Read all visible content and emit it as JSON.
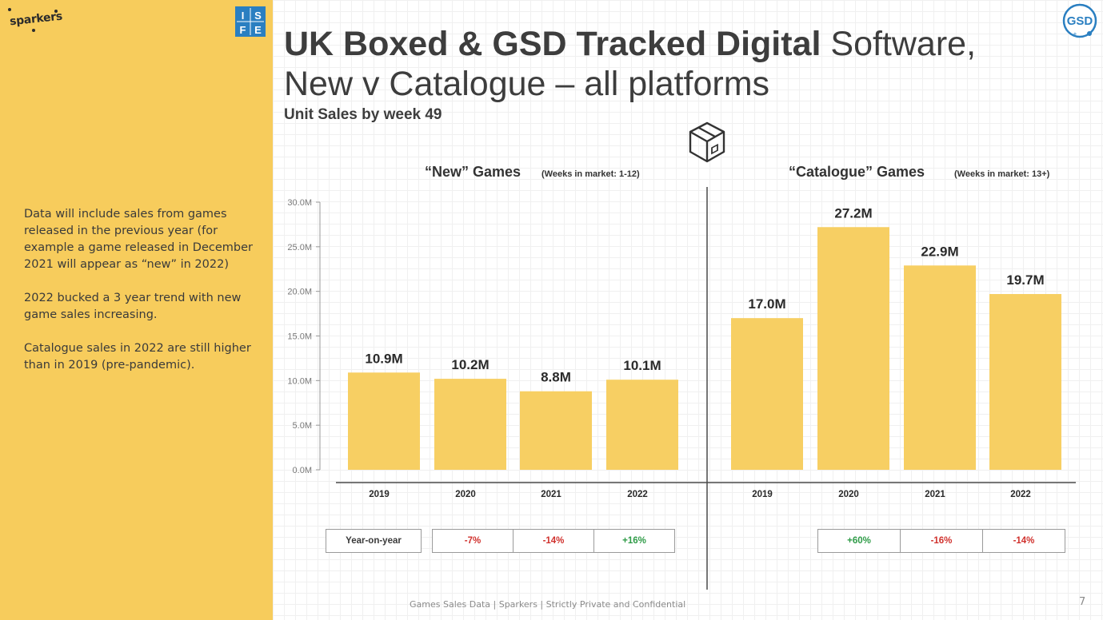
{
  "brand": {
    "sparkers": "sparkers",
    "isfe_letters": [
      "I",
      "S",
      "F",
      "E"
    ],
    "gsd": "GSD"
  },
  "title": {
    "bold": "UK Boxed & GSD Tracked Digital",
    "regular_line1": " Software,",
    "line2": "New v Catalogue – all platforms"
  },
  "subtitle": "Unit Sales by week 49",
  "sidebar": {
    "paragraphs": [
      "Data will include sales from games released in the previous year (for example a game released in December 2021 will appear as “new” in 2022)",
      "2022 bucked a 3 year trend with new game sales increasing.",
      "Catalogue sales in 2022 are still higher than in 2019 (pre-pandemic)."
    ]
  },
  "chart_data": [
    {
      "type": "bar",
      "title": "“New” Games",
      "subtitle": "(Weeks in market: 1-12)",
      "categories": [
        "2019",
        "2020",
        "2021",
        "2022"
      ],
      "values": [
        10.9,
        10.2,
        8.8,
        10.1
      ],
      "data_labels": [
        "10.9M",
        "10.2M",
        "8.8M",
        "10.1M"
      ],
      "ylim": [
        0,
        30
      ],
      "yticks": [
        0,
        5,
        10,
        15,
        20,
        25,
        30
      ],
      "ytick_labels": [
        "0.0M",
        "5.0M",
        "10.0M",
        "15.0M",
        "20.0M",
        "25.0M",
        "30.0M"
      ],
      "color": "#f7cf63"
    },
    {
      "type": "bar",
      "title": "“Catalogue” Games",
      "subtitle": "(Weeks in market: 13+)",
      "categories": [
        "2019",
        "2020",
        "2021",
        "2022"
      ],
      "values": [
        17.0,
        27.2,
        22.9,
        19.7
      ],
      "data_labels": [
        "17.0M",
        "27.2M",
        "22.9M",
        "19.7M"
      ],
      "ylim": [
        0,
        30
      ],
      "color": "#f7cf63"
    }
  ],
  "yoy": {
    "label": "Year-on-year",
    "new": [
      {
        "text": "-7%",
        "color": "#d0312d"
      },
      {
        "text": "-14%",
        "color": "#d0312d"
      },
      {
        "text": "+16%",
        "color": "#2e9b47"
      }
    ],
    "catalogue": [
      {
        "text": "+60%",
        "color": "#2e9b47"
      },
      {
        "text": "-16%",
        "color": "#d0312d"
      },
      {
        "text": "-14%",
        "color": "#d0312d"
      }
    ]
  },
  "footer": "Games Sales Data | Sparkers | Strictly Private and Confidential",
  "page_number": "7"
}
